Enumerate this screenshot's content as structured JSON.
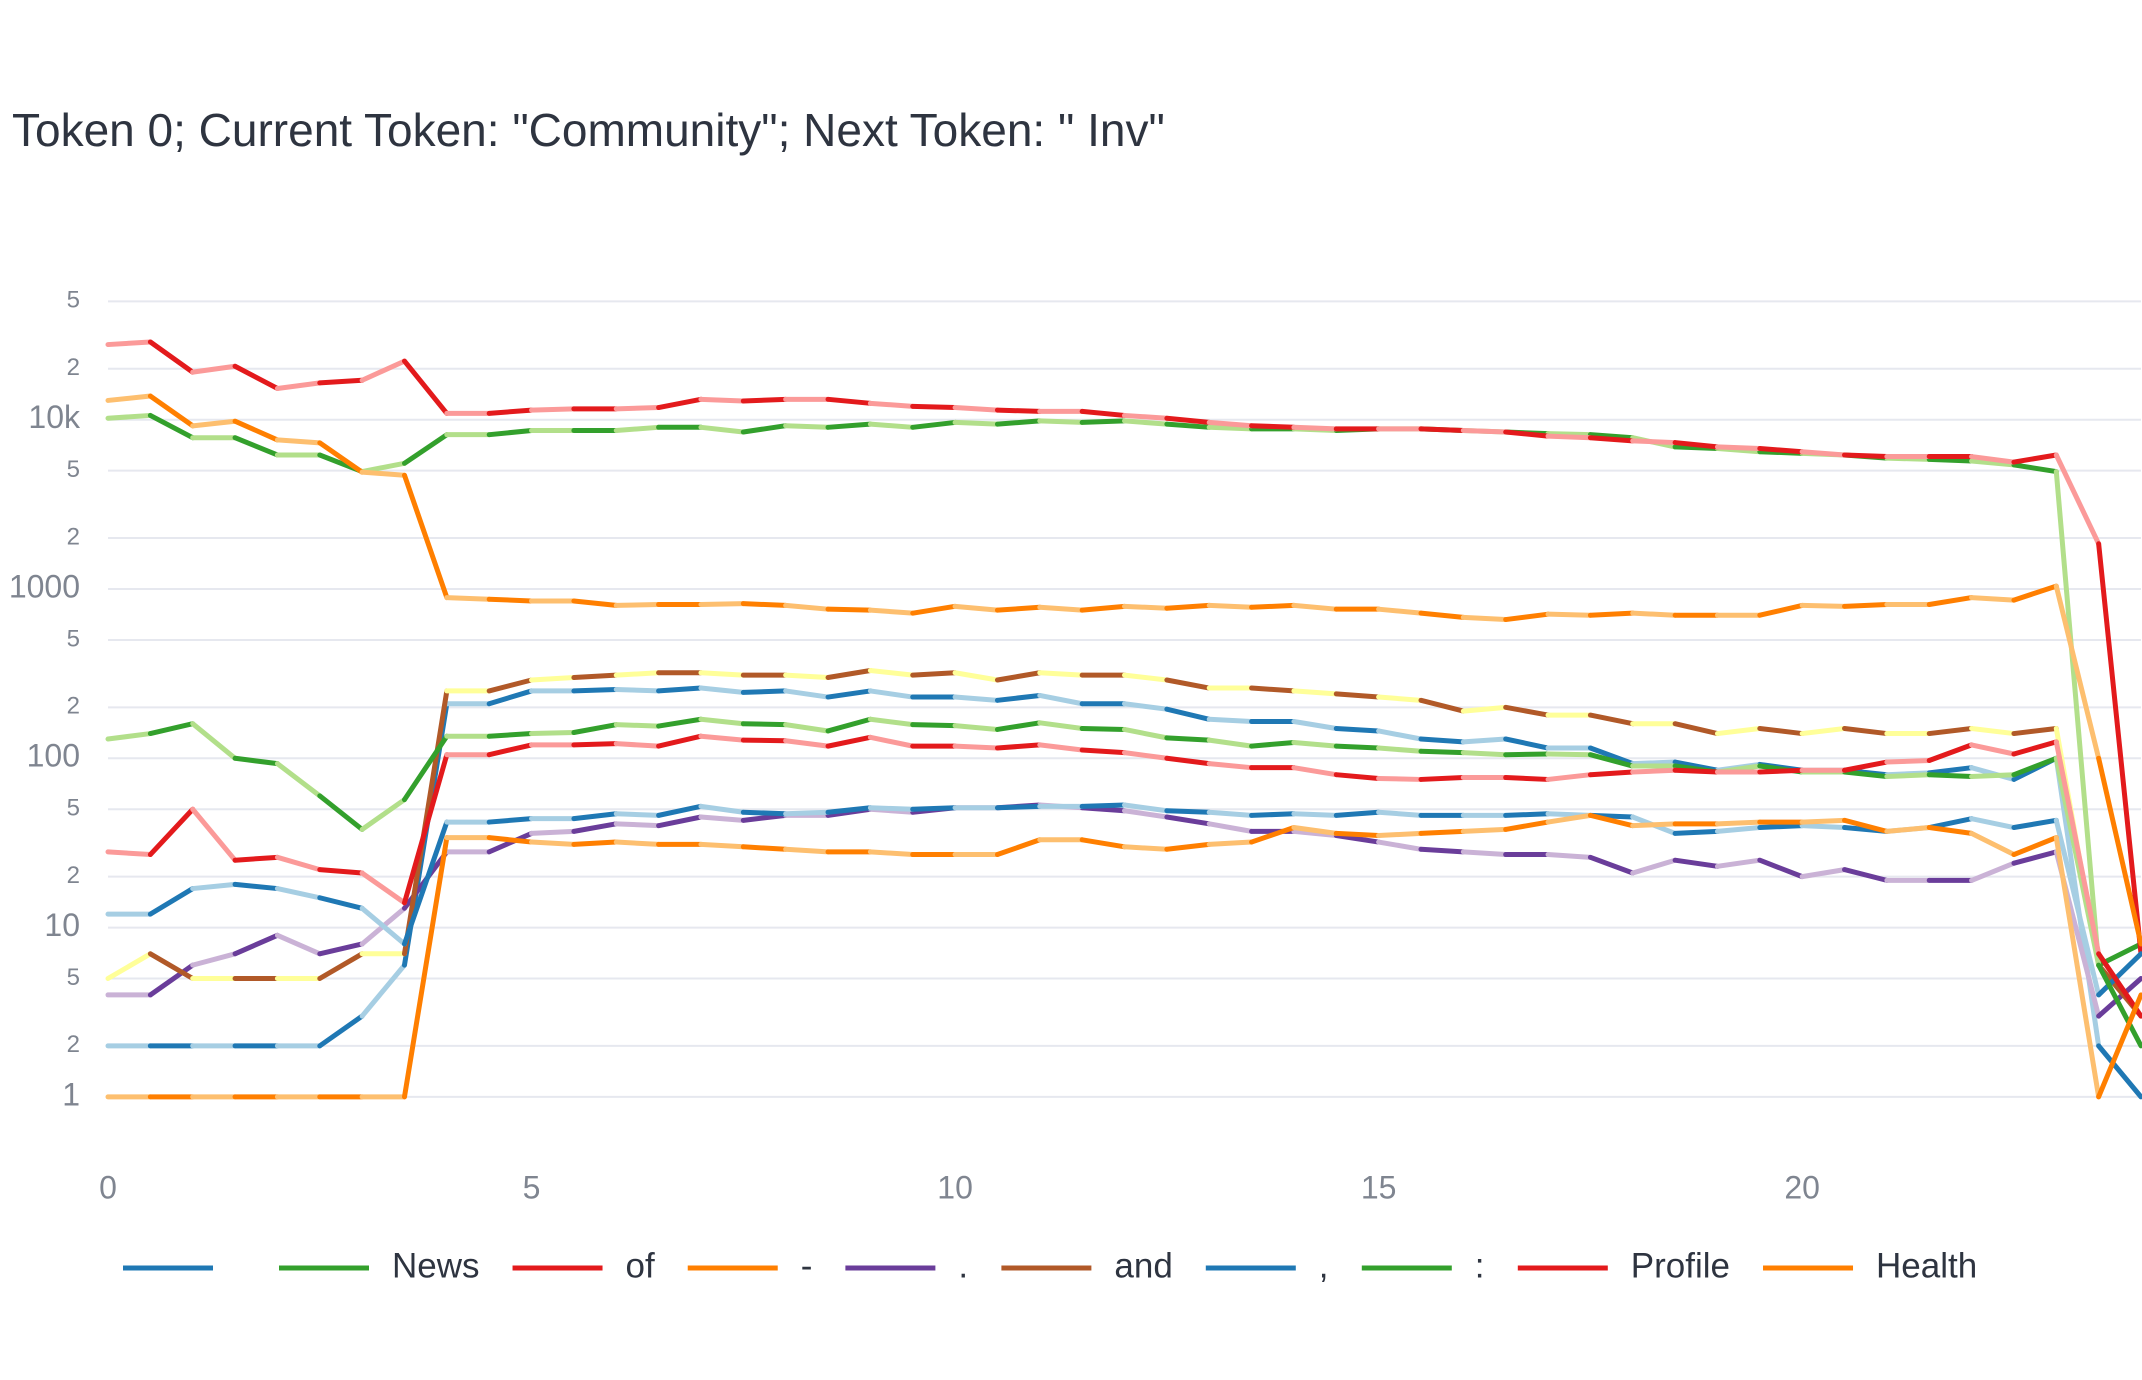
{
  "chart_data": {
    "type": "line",
    "title": "Token 0; Current Token: \"Community\"; Next Token: \" Inv\"",
    "log_y": true,
    "grid": true,
    "x": [
      0,
      0.5,
      1,
      1.5,
      2,
      2.5,
      3,
      3.5,
      4,
      4.5,
      5,
      5.5,
      6,
      6.5,
      7,
      7.5,
      8,
      8.5,
      9,
      9.5,
      10,
      10.5,
      11,
      11.5,
      12,
      12.5,
      13,
      13.5,
      14,
      14.5,
      15,
      15.5,
      16,
      16.5,
      17,
      17.5,
      18,
      18.5,
      19,
      19.5,
      20,
      20.5,
      21,
      21.5,
      22,
      22.5,
      23,
      23.5,
      24
    ],
    "xlim": [
      0,
      24
    ],
    "xticks": [
      0,
      5,
      10,
      15,
      20
    ],
    "ylim": [
      0.75,
      60000
    ],
    "yticks": [
      1,
      {
        "value": 2,
        "label": "2"
      },
      {
        "value": 5,
        "label": "5"
      },
      10,
      {
        "value": 20,
        "label": "2"
      },
      {
        "value": 50,
        "label": "5"
      },
      100,
      {
        "value": 200,
        "label": "2"
      },
      {
        "value": 500,
        "label": "5"
      },
      1000,
      {
        "value": 2000,
        "label": "2"
      },
      {
        "value": 5000,
        "label": "5"
      },
      {
        "value": 10000,
        "label": "10k"
      },
      {
        "value": 20000,
        "label": "2"
      },
      {
        "value": 50000,
        "label": "5"
      }
    ],
    "series": [
      {
        "name": " ",
        "colors": [
          "#1f78b4",
          "#a6cee3"
        ],
        "values": [
          2,
          2,
          2,
          2,
          2,
          2,
          3,
          6,
          210,
          210,
          250,
          250,
          255,
          250,
          260,
          245,
          250,
          230,
          250,
          230,
          230,
          220,
          235,
          210,
          210,
          195,
          170,
          165,
          165,
          150,
          145,
          130,
          125,
          130,
          115,
          115,
          93,
          95,
          85,
          92,
          85,
          85,
          80,
          82,
          88,
          75,
          100,
          2,
          1
        ]
      },
      {
        "name": "News",
        "colors": [
          "#33a02c",
          "#b2df8a"
        ],
        "values": [
          10200,
          10600,
          7830,
          7830,
          6190,
          6190,
          4940,
          5530,
          8160,
          8160,
          8640,
          8640,
          8640,
          9020,
          9020,
          8460,
          9220,
          9020,
          9420,
          9020,
          9640,
          9420,
          9840,
          9640,
          9840,
          9420,
          9020,
          8830,
          8830,
          8640,
          8830,
          8830,
          8640,
          8460,
          8280,
          8160,
          7830,
          6910,
          6760,
          6470,
          6330,
          6190,
          5930,
          5830,
          5700,
          5410,
          4940,
          6,
          8
        ]
      },
      {
        "name": "of",
        "colors": [
          "#e31a1c",
          "#fb9a99"
        ],
        "values": [
          27800,
          28800,
          19100,
          20700,
          15300,
          16500,
          17100,
          22200,
          10900,
          10900,
          11400,
          11600,
          11600,
          11800,
          13200,
          12900,
          13200,
          13200,
          12500,
          12000,
          11800,
          11400,
          11200,
          11200,
          10600,
          10200,
          9640,
          9220,
          9020,
          8830,
          8830,
          8830,
          8640,
          8460,
          8000,
          7830,
          7500,
          7330,
          6910,
          6760,
          6470,
          6190,
          6060,
          6060,
          6060,
          5620,
          6190,
          1850,
          7
        ]
      },
      {
        "name": "-",
        "colors": [
          "#ff7f00",
          "#fdbf6f"
        ],
        "values": [
          13000,
          13800,
          9200,
          9800,
          7600,
          7300,
          4900,
          4700,
          890,
          870,
          850,
          850,
          800,
          810,
          810,
          820,
          800,
          760,
          750,
          720,
          790,
          750,
          780,
          750,
          790,
          770,
          800,
          780,
          800,
          760,
          760,
          720,
          680,
          660,
          710,
          700,
          720,
          700,
          700,
          700,
          800,
          790,
          810,
          810,
          890,
          860,
          1040,
          100,
          8
        ]
      },
      {
        "name": ".",
        "colors": [
          "#6a3d9a",
          "#cab2d6"
        ],
        "values": [
          4,
          4,
          6,
          7,
          9,
          7,
          8,
          13,
          28,
          28,
          36,
          37,
          41,
          40,
          45,
          43,
          46,
          46,
          50,
          48,
          51,
          51,
          53,
          51,
          49,
          45,
          41,
          37,
          37,
          35,
          32,
          29,
          28,
          27,
          27,
          26,
          21,
          25,
          23,
          25,
          20,
          22,
          19,
          19,
          19,
          24,
          28,
          3,
          5
        ]
      },
      {
        "name": "and",
        "colors": [
          "#b15928",
          "#ffff99"
        ],
        "values": [
          5,
          7,
          5,
          5,
          5,
          5,
          7,
          7,
          250,
          250,
          290,
          300,
          310,
          320,
          320,
          310,
          310,
          300,
          330,
          310,
          320,
          290,
          320,
          310,
          310,
          290,
          260,
          260,
          250,
          240,
          230,
          220,
          190,
          200,
          180,
          180,
          160,
          160,
          140,
          150,
          140,
          150,
          140,
          140,
          150,
          140,
          150,
          6,
          3
        ]
      },
      {
        "name": ",",
        "colors": [
          "#1f78b4",
          "#a6cee3"
        ],
        "values": [
          12,
          12,
          17,
          18,
          17,
          15,
          13,
          8,
          42,
          42,
          44,
          44,
          47,
          46,
          52,
          48,
          47,
          48,
          51,
          50,
          51,
          51,
          52,
          52,
          53,
          49,
          48,
          46,
          47,
          46,
          48,
          46,
          46,
          46,
          47,
          46,
          45,
          36,
          37,
          39,
          40,
          39,
          37,
          39,
          44,
          39,
          43,
          4,
          7
        ]
      },
      {
        "name": ":",
        "colors": [
          "#33a02c",
          "#b2df8a"
        ],
        "values": [
          130,
          140,
          160,
          100,
          93,
          60,
          38,
          57,
          135,
          135,
          140,
          142,
          158,
          155,
          170,
          160,
          158,
          145,
          170,
          158,
          156,
          148,
          162,
          150,
          148,
          132,
          128,
          118,
          124,
          118,
          115,
          110,
          108,
          105,
          106,
          105,
          90,
          90,
          83,
          90,
          83,
          83,
          78,
          80,
          78,
          80,
          100,
          6,
          2
        ]
      },
      {
        "name": "Profile",
        "colors": [
          "#e31a1c",
          "#fb9a99"
        ],
        "values": [
          28,
          27,
          50,
          25,
          26,
          22,
          21,
          14,
          105,
          105,
          120,
          120,
          122,
          118,
          135,
          128,
          127,
          118,
          133,
          118,
          118,
          115,
          120,
          112,
          108,
          100,
          93,
          88,
          88,
          80,
          76,
          75,
          77,
          77,
          75,
          80,
          83,
          85,
          83,
          83,
          85,
          85,
          95,
          97,
          120,
          106,
          125,
          7,
          3
        ]
      },
      {
        "name": "Health",
        "colors": [
          "#ff7f00",
          "#fdbf6f"
        ],
        "values": [
          1,
          1,
          1,
          1,
          1,
          1,
          1,
          1,
          34,
          34,
          32,
          31,
          32,
          31,
          31,
          30,
          29,
          28,
          28,
          27,
          27,
          27,
          33,
          33,
          30,
          29,
          31,
          32,
          39,
          36,
          35,
          36,
          37,
          38,
          42,
          46,
          40,
          41,
          41,
          42,
          42,
          43,
          37,
          39,
          36,
          27,
          34,
          1,
          4
        ]
      }
    ]
  }
}
